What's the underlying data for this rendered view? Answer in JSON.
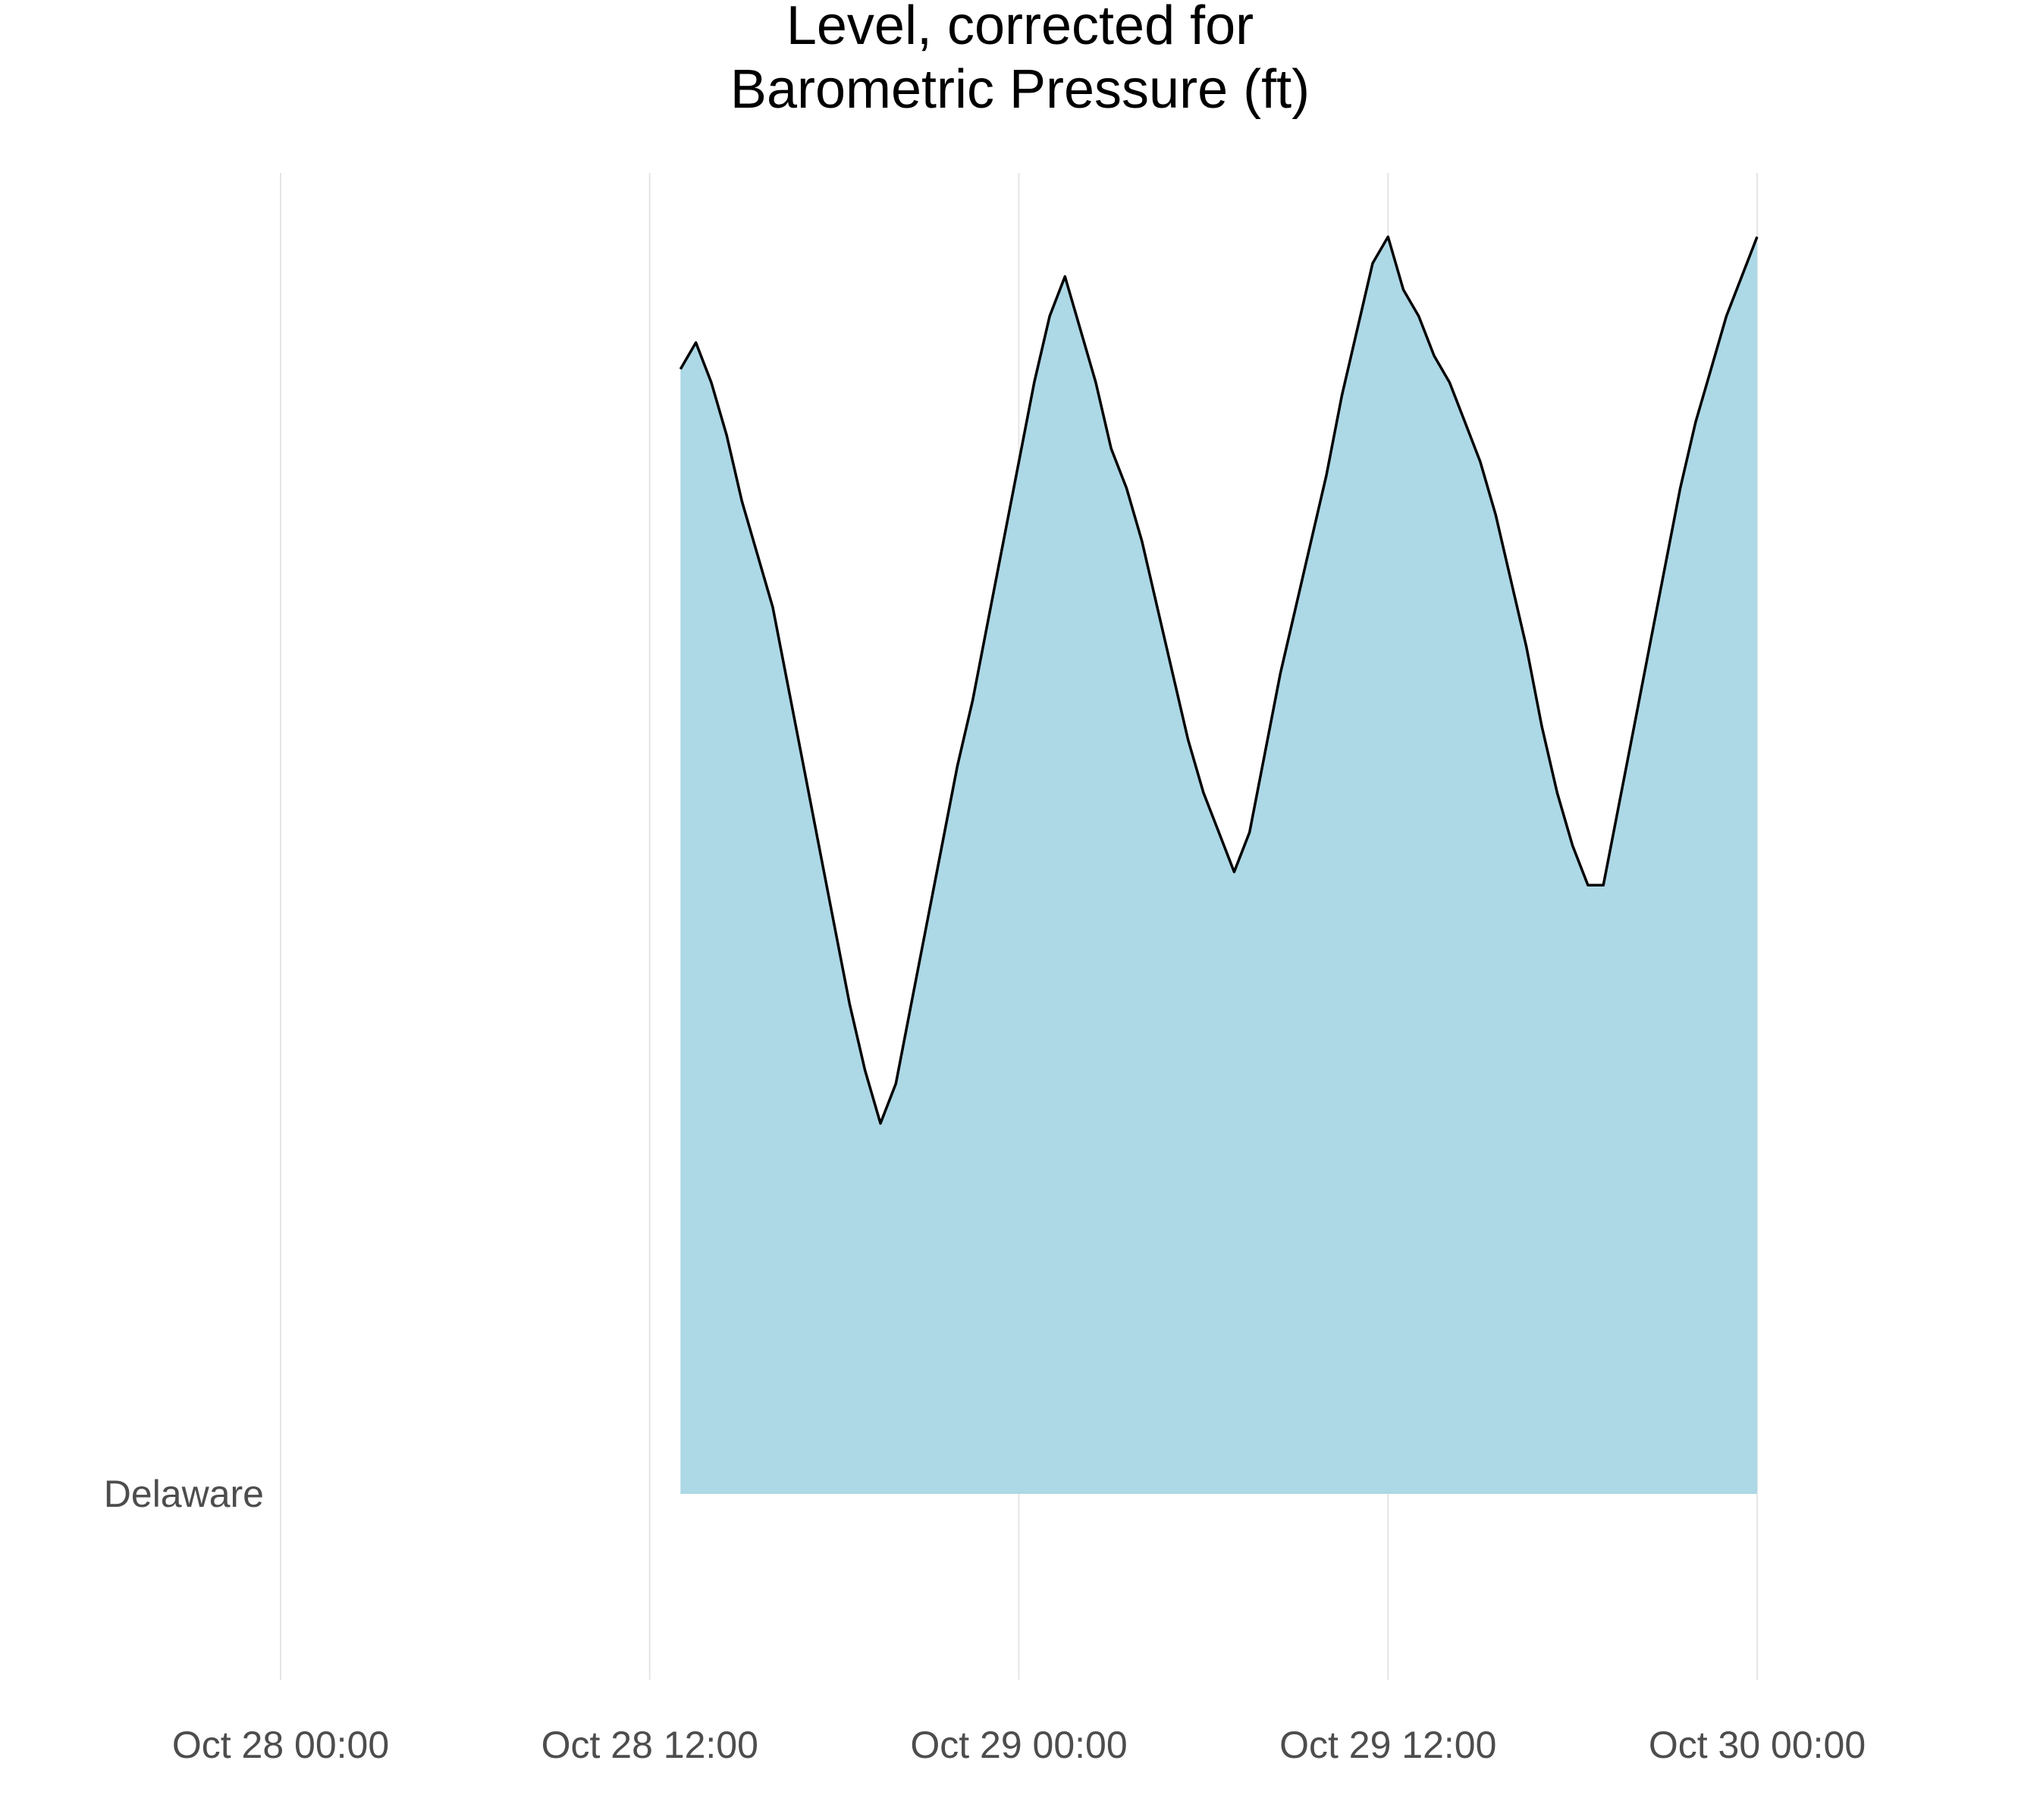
{
  "chart_data": {
    "type": "area",
    "title_lines": [
      "Level, corrected for",
      "Barometric Pressure (ft)"
    ],
    "xlabel": "",
    "ylabel": "",
    "x_ticks": [
      "Oct 28 00:00",
      "Oct 28 12:00",
      "Oct 29 00:00",
      "Oct 29 12:00",
      "Oct 30 00:00"
    ],
    "x_tick_hours": [
      0,
      12,
      24,
      36,
      48
    ],
    "xlim_hours": [
      0,
      48
    ],
    "category": "Delaware",
    "grid": "vertical major",
    "fill_color": "#add8e6",
    "line_color": "#000000",
    "series": [
      {
        "x_hours": [
          13.0,
          13.5,
          14.0,
          14.5,
          15.0,
          15.5,
          16.0,
          16.5,
          17.0,
          17.5,
          18.0,
          18.5,
          19.0,
          19.5,
          20.0,
          20.5,
          21.0,
          21.5,
          22.0,
          22.5,
          23.0,
          23.5,
          24.0,
          24.5,
          25.0,
          25.5,
          26.0,
          26.5,
          27.0,
          27.5,
          28.0,
          28.5,
          29.0,
          29.5,
          30.0,
          30.5,
          31.0,
          31.5,
          32.0,
          32.5,
          33.0,
          33.5,
          34.0,
          34.5,
          35.0,
          35.5,
          36.0,
          36.5,
          37.0,
          37.5,
          38.0,
          38.5,
          39.0,
          39.5,
          40.0,
          40.5,
          41.0,
          41.5,
          42.0,
          42.5,
          43.0,
          43.5,
          44.0,
          44.5,
          45.0,
          45.5,
          46.0,
          46.5,
          47.0,
          47.5,
          48.0
        ],
        "values": [
          0.85,
          0.87,
          0.84,
          0.8,
          0.75,
          0.71,
          0.67,
          0.61,
          0.55,
          0.49,
          0.43,
          0.37,
          0.32,
          0.28,
          0.31,
          0.37,
          0.43,
          0.49,
          0.55,
          0.6,
          0.66,
          0.72,
          0.78,
          0.84,
          0.89,
          0.92,
          0.88,
          0.84,
          0.79,
          0.76,
          0.72,
          0.67,
          0.62,
          0.57,
          0.53,
          0.5,
          0.47,
          0.5,
          0.56,
          0.62,
          0.67,
          0.72,
          0.77,
          0.83,
          0.88,
          0.93,
          0.95,
          0.91,
          0.89,
          0.86,
          0.84,
          0.81,
          0.78,
          0.74,
          0.69,
          0.64,
          0.58,
          0.53,
          0.49,
          0.46,
          0.46,
          0.52,
          0.58,
          0.64,
          0.7,
          0.76,
          0.81,
          0.85,
          0.89,
          0.92,
          0.95
        ]
      }
    ]
  }
}
